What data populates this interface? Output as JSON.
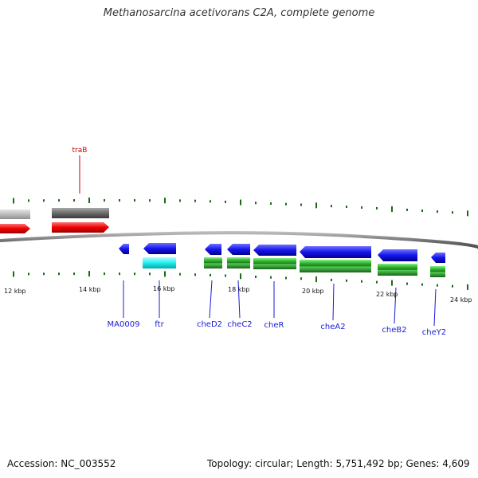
{
  "title": "Methanosarcina acetivorans C2A, complete genome",
  "accession_label": "Accession: NC_003552",
  "topology_label": "Topology: circular; Length: 5,751,492 bp; Genes: 4,609",
  "colors": {
    "backbone": "#777777",
    "tick": "#1a6b12",
    "upper_gene": "#cc0000",
    "lower_gene": "#1a1adb",
    "gray_feature": "#8c8c8c",
    "cyan_feature": "#22dddd",
    "green_feature": "#33aa33"
  },
  "ruler": [
    "12 kbp",
    "14 kbp",
    "16 kbp",
    "18 kbp",
    "20 kbp",
    "22 kbp",
    "24 kbp"
  ],
  "genes_upper": [
    "traB"
  ],
  "genes_lower": [
    "MA0009",
    "ftr",
    "cheD2",
    "cheC2",
    "cheR",
    "cheA2",
    "cheB2",
    "cheY2"
  ]
}
